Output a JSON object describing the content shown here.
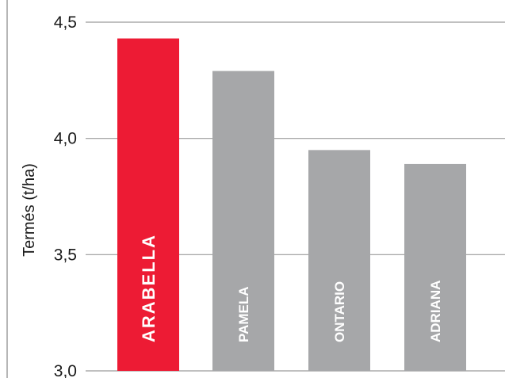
{
  "chart_data": {
    "type": "bar",
    "ylabel": "Termés  (t/ha)",
    "ylim": [
      3.0,
      4.5
    ],
    "yticks": [
      "3,0",
      "3,5",
      "4,0",
      "4,5"
    ],
    "ytick_values": [
      3.0,
      3.5,
      4.0,
      4.5
    ],
    "categories": [
      "ARABELLA",
      "PAMELA",
      "ONTARIO",
      "ADRIANA"
    ],
    "values": [
      4.43,
      4.29,
      3.95,
      3.89
    ],
    "colors": [
      "#ed1b34",
      "#a6a7a9",
      "#a6a7a9",
      "#a6a7a9"
    ],
    "grid": true,
    "legend": "none"
  },
  "colors": {
    "highlight": "#ed1b34",
    "bar": "#a6a7a9",
    "gridline": "#9a9a9a",
    "axis": "#6e6e6e"
  }
}
